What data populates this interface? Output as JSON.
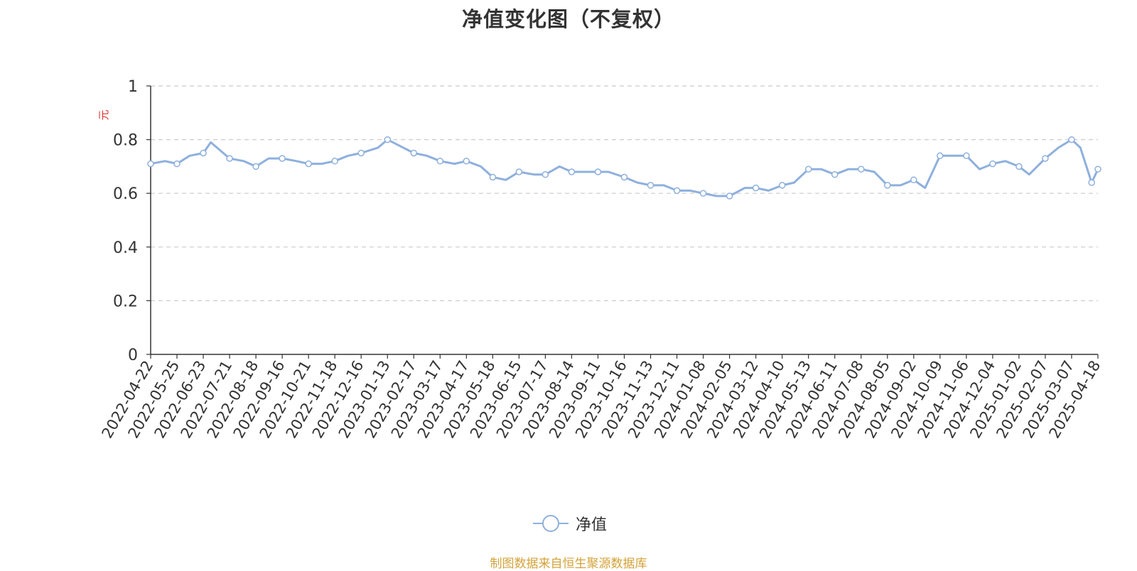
{
  "chart_data": {
    "type": "line",
    "title": "净值变化图（不复权）",
    "ylabel": "元",
    "ylim": [
      0,
      1
    ],
    "yticks": [
      "0",
      "0.2",
      "0.4",
      "0.6",
      "0.8",
      "1"
    ],
    "grid": true,
    "legend_position": "bottom-center",
    "x_tick_labels": [
      "2022-04-22",
      "2022-05-25",
      "2022-06-23",
      "2022-07-21",
      "2022-08-18",
      "2022-09-16",
      "2022-10-21",
      "2022-11-18",
      "2022-12-16",
      "2023-01-13",
      "2023-02-17",
      "2023-03-17",
      "2023-04-17",
      "2023-05-18",
      "2023-06-15",
      "2023-07-17",
      "2023-08-14",
      "2023-09-11",
      "2023-10-16",
      "2023-11-13",
      "2023-12-11",
      "2024-01-08",
      "2024-02-05",
      "2024-03-12",
      "2024-04-10",
      "2024-05-13",
      "2024-06-11",
      "2024-07-08",
      "2024-08-05",
      "2024-09-02",
      "2024-10-09",
      "2024-11-06",
      "2024-12-04",
      "2025-01-02",
      "2025-02-07",
      "2025-03-07",
      "2025-04-18"
    ],
    "series": [
      {
        "name": "净值",
        "color": "#8eb0dd",
        "x": [
          "2022-04-22",
          "2022-05-10",
          "2022-05-25",
          "2022-06-08",
          "2022-06-23",
          "2022-07-01",
          "2022-07-21",
          "2022-08-05",
          "2022-08-18",
          "2022-09-01",
          "2022-09-16",
          "2022-10-05",
          "2022-10-21",
          "2022-11-04",
          "2022-11-18",
          "2022-12-02",
          "2022-12-16",
          "2023-01-03",
          "2023-01-13",
          "2023-02-03",
          "2023-02-17",
          "2023-03-03",
          "2023-03-17",
          "2023-04-03",
          "2023-04-17",
          "2023-05-04",
          "2023-05-18",
          "2023-06-01",
          "2023-06-15",
          "2023-07-03",
          "2023-07-17",
          "2023-08-01",
          "2023-08-14",
          "2023-08-28",
          "2023-09-11",
          "2023-09-25",
          "2023-10-16",
          "2023-10-30",
          "2023-11-13",
          "2023-11-27",
          "2023-12-11",
          "2023-12-25",
          "2024-01-08",
          "2024-01-22",
          "2024-02-05",
          "2024-02-26",
          "2024-03-12",
          "2024-03-26",
          "2024-04-10",
          "2024-04-25",
          "2024-05-13",
          "2024-05-27",
          "2024-06-11",
          "2024-06-25",
          "2024-07-08",
          "2024-07-22",
          "2024-08-05",
          "2024-08-19",
          "2024-09-02",
          "2024-09-18",
          "2024-10-09",
          "2024-10-22",
          "2024-11-06",
          "2024-11-20",
          "2024-12-04",
          "2024-12-18",
          "2025-01-02",
          "2025-01-16",
          "2025-02-07",
          "2025-02-21",
          "2025-03-07",
          "2025-03-21",
          "2025-04-08",
          "2025-04-18"
        ],
        "values": [
          0.71,
          0.72,
          0.71,
          0.74,
          0.75,
          0.79,
          0.73,
          0.72,
          0.7,
          0.73,
          0.73,
          0.72,
          0.71,
          0.71,
          0.72,
          0.74,
          0.75,
          0.77,
          0.8,
          0.77,
          0.75,
          0.74,
          0.72,
          0.71,
          0.72,
          0.7,
          0.66,
          0.65,
          0.68,
          0.67,
          0.67,
          0.7,
          0.68,
          0.68,
          0.68,
          0.68,
          0.66,
          0.64,
          0.63,
          0.63,
          0.61,
          0.61,
          0.6,
          0.59,
          0.59,
          0.62,
          0.62,
          0.61,
          0.63,
          0.64,
          0.69,
          0.69,
          0.67,
          0.69,
          0.69,
          0.68,
          0.63,
          0.63,
          0.65,
          0.62,
          0.74,
          0.74,
          0.74,
          0.69,
          0.71,
          0.72,
          0.7,
          0.67,
          0.73,
          0.77,
          0.8,
          0.77,
          0.64,
          0.69
        ]
      }
    ]
  },
  "legend": {
    "label": "净值"
  },
  "source_note": "制图数据来自恒生聚源数据库"
}
